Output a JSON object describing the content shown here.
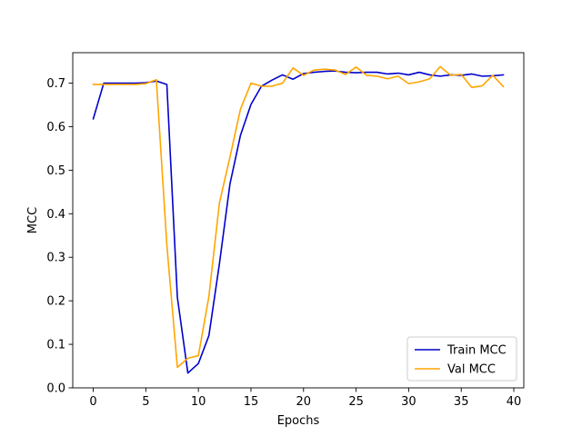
{
  "chart_data": {
    "type": "line",
    "title": "",
    "xlabel": "Epochs",
    "ylabel": "MCC",
    "xlim": [
      -1.95,
      40.95
    ],
    "ylim": [
      0.0,
      0.77
    ],
    "xticks": [
      0,
      5,
      10,
      15,
      20,
      25,
      30,
      35,
      40
    ],
    "yticks": [
      0.0,
      0.1,
      0.2,
      0.3,
      0.4,
      0.5,
      0.6,
      0.7
    ],
    "xtick_labels": [
      "0",
      "5",
      "10",
      "15",
      "20",
      "25",
      "30",
      "35",
      "40"
    ],
    "ytick_labels": [
      "0.0",
      "0.1",
      "0.2",
      "0.3",
      "0.4",
      "0.5",
      "0.6",
      "0.7"
    ],
    "grid": false,
    "legend": "lower-right",
    "series": [
      {
        "name": "Train MCC",
        "color": "#0000cc",
        "x": [
          0,
          1,
          2,
          3,
          4,
          5,
          6,
          7,
          8,
          9,
          10,
          11,
          12,
          13,
          14,
          15,
          16,
          17,
          18,
          19,
          20,
          21,
          22,
          23,
          24,
          25,
          26,
          27,
          28,
          29,
          30,
          31,
          32,
          33,
          34,
          35,
          36,
          37,
          38,
          39
        ],
        "values": [
          0.618,
          0.7,
          0.7,
          0.7,
          0.7,
          0.701,
          0.705,
          0.697,
          0.208,
          0.034,
          0.056,
          0.12,
          0.285,
          0.468,
          0.58,
          0.651,
          0.693,
          0.707,
          0.719,
          0.709,
          0.722,
          0.725,
          0.727,
          0.728,
          0.725,
          0.724,
          0.725,
          0.725,
          0.721,
          0.723,
          0.719,
          0.725,
          0.719,
          0.716,
          0.719,
          0.718,
          0.721,
          0.716,
          0.717,
          0.719
        ]
      },
      {
        "name": "Val MCC",
        "color": "#ffa500",
        "x": [
          0,
          1,
          2,
          3,
          4,
          5,
          6,
          7,
          8,
          9,
          10,
          11,
          12,
          13,
          14,
          15,
          16,
          17,
          18,
          19,
          20,
          21,
          22,
          23,
          24,
          25,
          26,
          27,
          28,
          29,
          30,
          31,
          32,
          33,
          34,
          35,
          36,
          37,
          38,
          39
        ],
        "values": [
          0.697,
          0.697,
          0.697,
          0.697,
          0.697,
          0.699,
          0.708,
          0.328,
          0.047,
          0.068,
          0.074,
          0.21,
          0.425,
          0.53,
          0.64,
          0.7,
          0.693,
          0.693,
          0.7,
          0.735,
          0.718,
          0.73,
          0.732,
          0.73,
          0.72,
          0.737,
          0.718,
          0.716,
          0.71,
          0.716,
          0.699,
          0.703,
          0.71,
          0.738,
          0.718,
          0.72,
          0.69,
          0.694,
          0.718,
          0.692
        ]
      }
    ]
  }
}
